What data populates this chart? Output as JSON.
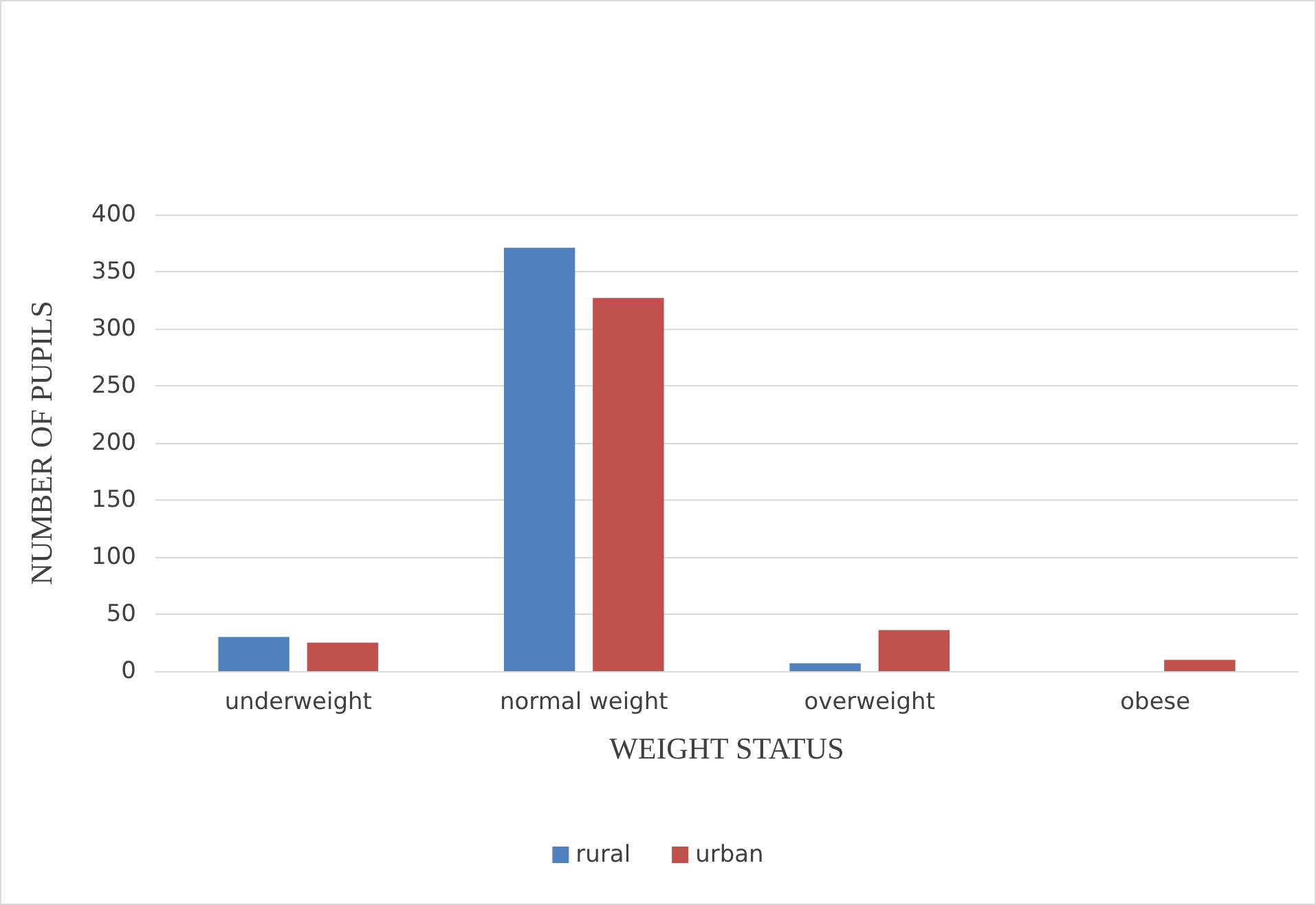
{
  "chart_data": {
    "type": "bar",
    "xlabel": "WEIGHT STATUS",
    "ylabel": "NUMBER OF PUPILS",
    "categories": [
      "underweight",
      "normal weight",
      "overweight",
      "obese"
    ],
    "series": [
      {
        "name": "rural",
        "color": "#4f81bd",
        "values": [
          30,
          371,
          7,
          0
        ]
      },
      {
        "name": "urban",
        "color": "#c0504d",
        "values": [
          25,
          327,
          36,
          10
        ]
      }
    ],
    "ylim": [
      0,
      400
    ],
    "yticks": [
      0,
      50,
      100,
      150,
      200,
      250,
      300,
      350,
      400
    ],
    "grid": "y",
    "legend": "bottom"
  }
}
